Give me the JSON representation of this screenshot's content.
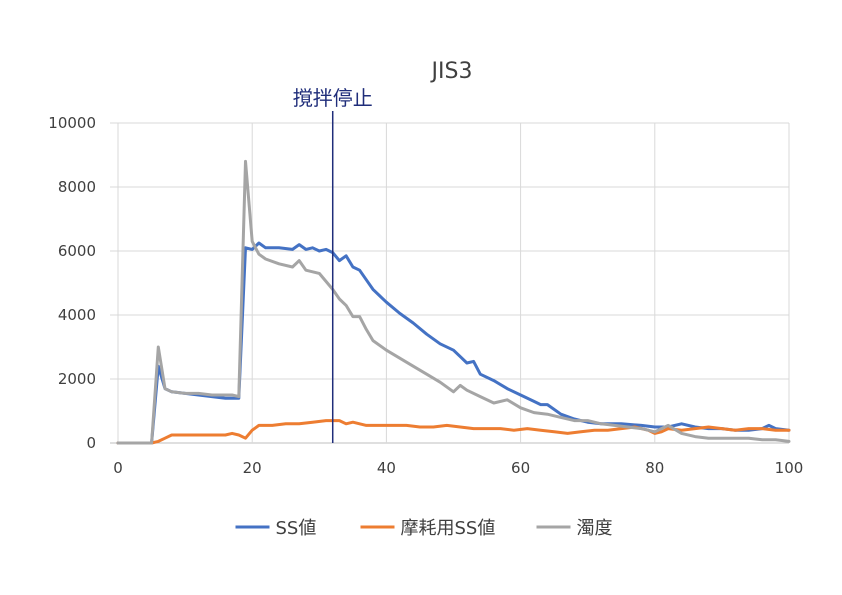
{
  "chart_data": {
    "type": "line",
    "title": "JIS3",
    "xlabel": "",
    "ylabel": "",
    "xlim": [
      0,
      100
    ],
    "ylim": [
      0,
      10000
    ],
    "xticks": [
      0,
      20,
      40,
      60,
      80,
      100
    ],
    "yticks": [
      0,
      2000,
      4000,
      6000,
      8000,
      10000
    ],
    "grid": "vertical and horizontal",
    "legend": "bottom",
    "annotation": {
      "text": "撹拌停止",
      "x": 32
    },
    "series": [
      {
        "name": "SS値",
        "color": "#4472c4",
        "points": [
          [
            0,
            0
          ],
          [
            5,
            0
          ],
          [
            6,
            2400
          ],
          [
            7,
            1700
          ],
          [
            8,
            1600
          ],
          [
            10,
            1550
          ],
          [
            12,
            1500
          ],
          [
            14,
            1450
          ],
          [
            16,
            1400
          ],
          [
            17,
            1400
          ],
          [
            18,
            1400
          ],
          [
            19,
            6100
          ],
          [
            20,
            6050
          ],
          [
            21,
            6250
          ],
          [
            22,
            6100
          ],
          [
            24,
            6100
          ],
          [
            26,
            6050
          ],
          [
            27,
            6200
          ],
          [
            28,
            6050
          ],
          [
            29,
            6100
          ],
          [
            30,
            6000
          ],
          [
            31,
            6050
          ],
          [
            32,
            5950
          ],
          [
            33,
            5700
          ],
          [
            34,
            5850
          ],
          [
            35,
            5500
          ],
          [
            36,
            5400
          ],
          [
            37,
            5100
          ],
          [
            38,
            4800
          ],
          [
            40,
            4400
          ],
          [
            42,
            4050
          ],
          [
            44,
            3750
          ],
          [
            46,
            3400
          ],
          [
            48,
            3100
          ],
          [
            50,
            2900
          ],
          [
            51,
            2700
          ],
          [
            52,
            2500
          ],
          [
            53,
            2550
          ],
          [
            54,
            2150
          ],
          [
            56,
            1950
          ],
          [
            58,
            1700
          ],
          [
            60,
            1500
          ],
          [
            62,
            1300
          ],
          [
            63,
            1200
          ],
          [
            64,
            1200
          ],
          [
            66,
            900
          ],
          [
            68,
            750
          ],
          [
            70,
            650
          ],
          [
            72,
            600
          ],
          [
            75,
            600
          ],
          [
            78,
            550
          ],
          [
            80,
            500
          ],
          [
            82,
            500
          ],
          [
            84,
            600
          ],
          [
            86,
            500
          ],
          [
            88,
            450
          ],
          [
            90,
            450
          ],
          [
            92,
            400
          ],
          [
            94,
            400
          ],
          [
            96,
            450
          ],
          [
            97,
            550
          ],
          [
            98,
            450
          ],
          [
            100,
            400
          ]
        ]
      },
      {
        "name": "摩耗用SS値",
        "color": "#ed7d31",
        "points": [
          [
            0,
            0
          ],
          [
            5,
            0
          ],
          [
            6,
            50
          ],
          [
            7,
            150
          ],
          [
            8,
            250
          ],
          [
            10,
            250
          ],
          [
            12,
            250
          ],
          [
            14,
            250
          ],
          [
            16,
            250
          ],
          [
            17,
            300
          ],
          [
            18,
            250
          ],
          [
            19,
            150
          ],
          [
            20,
            400
          ],
          [
            21,
            550
          ],
          [
            23,
            550
          ],
          [
            25,
            600
          ],
          [
            27,
            600
          ],
          [
            29,
            650
          ],
          [
            31,
            700
          ],
          [
            33,
            700
          ],
          [
            34,
            600
          ],
          [
            35,
            650
          ],
          [
            37,
            550
          ],
          [
            39,
            550
          ],
          [
            41,
            550
          ],
          [
            43,
            550
          ],
          [
            45,
            500
          ],
          [
            47,
            500
          ],
          [
            49,
            550
          ],
          [
            51,
            500
          ],
          [
            53,
            450
          ],
          [
            55,
            450
          ],
          [
            57,
            450
          ],
          [
            59,
            400
          ],
          [
            61,
            450
          ],
          [
            63,
            400
          ],
          [
            65,
            350
          ],
          [
            67,
            300
          ],
          [
            69,
            350
          ],
          [
            71,
            400
          ],
          [
            73,
            400
          ],
          [
            75,
            450
          ],
          [
            77,
            500
          ],
          [
            79,
            400
          ],
          [
            80,
            300
          ],
          [
            81,
            350
          ],
          [
            82,
            450
          ],
          [
            84,
            400
          ],
          [
            86,
            450
          ],
          [
            88,
            500
          ],
          [
            90,
            450
          ],
          [
            92,
            400
          ],
          [
            94,
            450
          ],
          [
            96,
            450
          ],
          [
            98,
            400
          ],
          [
            100,
            400
          ]
        ]
      },
      {
        "name": "濁度",
        "color": "#a5a5a5",
        "points": [
          [
            0,
            0
          ],
          [
            5,
            0
          ],
          [
            6,
            3000
          ],
          [
            7,
            1700
          ],
          [
            8,
            1600
          ],
          [
            10,
            1550
          ],
          [
            12,
            1550
          ],
          [
            14,
            1500
          ],
          [
            16,
            1500
          ],
          [
            17,
            1500
          ],
          [
            18,
            1450
          ],
          [
            19,
            8800
          ],
          [
            20,
            6300
          ],
          [
            21,
            5900
          ],
          [
            22,
            5750
          ],
          [
            24,
            5600
          ],
          [
            26,
            5500
          ],
          [
            27,
            5700
          ],
          [
            28,
            5400
          ],
          [
            30,
            5300
          ],
          [
            31,
            5050
          ],
          [
            32,
            4800
          ],
          [
            33,
            4500
          ],
          [
            34,
            4300
          ],
          [
            35,
            3950
          ],
          [
            36,
            3950
          ],
          [
            37,
            3550
          ],
          [
            38,
            3200
          ],
          [
            40,
            2900
          ],
          [
            42,
            2650
          ],
          [
            44,
            2400
          ],
          [
            46,
            2150
          ],
          [
            48,
            1900
          ],
          [
            50,
            1600
          ],
          [
            51,
            1800
          ],
          [
            52,
            1650
          ],
          [
            54,
            1450
          ],
          [
            56,
            1250
          ],
          [
            58,
            1350
          ],
          [
            60,
            1100
          ],
          [
            62,
            950
          ],
          [
            64,
            900
          ],
          [
            66,
            800
          ],
          [
            68,
            700
          ],
          [
            70,
            700
          ],
          [
            72,
            600
          ],
          [
            74,
            550
          ],
          [
            76,
            500
          ],
          [
            78,
            450
          ],
          [
            80,
            350
          ],
          [
            82,
            550
          ],
          [
            84,
            300
          ],
          [
            86,
            200
          ],
          [
            88,
            150
          ],
          [
            90,
            150
          ],
          [
            92,
            150
          ],
          [
            94,
            150
          ],
          [
            96,
            100
          ],
          [
            98,
            100
          ],
          [
            100,
            50
          ]
        ]
      }
    ]
  }
}
